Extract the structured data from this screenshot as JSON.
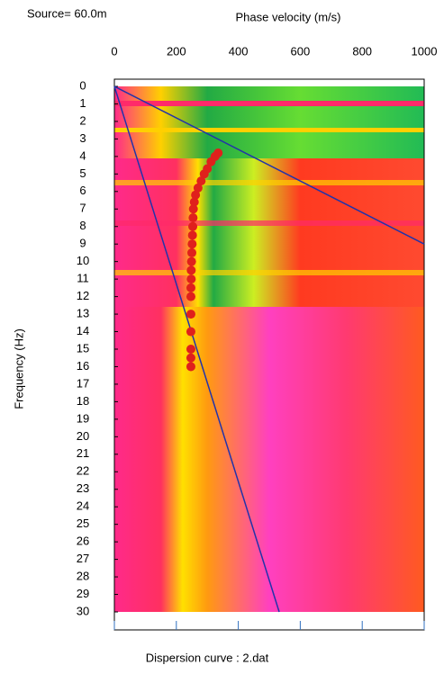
{
  "chart_data": {
    "type": "scatter",
    "title": "Source= 60.0m",
    "x_label": "Phase velocity (m/s)",
    "y_label": "Frequency (Hz)",
    "footer": "Dispersion curve : 2.dat",
    "xlim": [
      0,
      1000
    ],
    "xticks": [
      0,
      200,
      400,
      600,
      800,
      1000
    ],
    "ylim": [
      0,
      30
    ],
    "yticks": [
      0,
      1,
      2,
      3,
      4,
      5,
      6,
      7,
      8,
      9,
      10,
      11,
      12,
      13,
      14,
      15,
      16,
      17,
      18,
      19,
      20,
      21,
      22,
      23,
      24,
      25,
      26,
      27,
      28,
      29,
      30
    ],
    "y_inverted": true,
    "series": [
      {
        "color": "#e0201c",
        "x": [
          335,
          325,
          312,
          300,
          290,
          280,
          270,
          262,
          258,
          255,
          254,
          253,
          252,
          251,
          250,
          249,
          248,
          248,
          247,
          247,
          247,
          247,
          247,
          247,
          247
        ],
        "y": [
          3.8,
          4.0,
          4.3,
          4.7,
          5.0,
          5.4,
          5.8,
          6.2,
          6.6,
          7.0,
          7.5,
          8.0,
          8.5,
          9.0,
          9.5,
          10.0,
          10.5,
          11.0,
          11.5,
          12.0,
          13.0,
          14.0,
          15.0,
          15.5,
          16.0
        ]
      }
    ],
    "lines": [
      {
        "color": "#2233aa",
        "x": [
          0,
          1000
        ],
        "y": [
          0,
          9
        ]
      },
      {
        "color": "#2233aa",
        "x": [
          0,
          532
        ],
        "y": [
          0,
          30
        ]
      }
    ]
  }
}
